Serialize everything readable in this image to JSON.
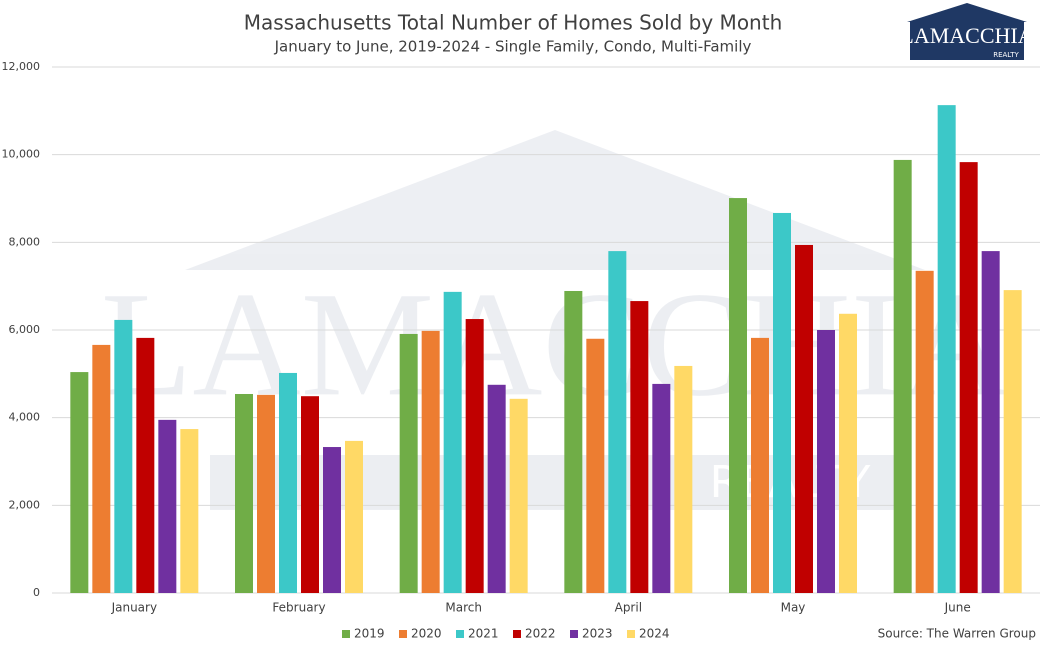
{
  "chart_data": {
    "type": "bar",
    "title": "Massachusetts Total Number of Homes Sold by Month",
    "subtitle": "January to June, 2019-2024 - Single Family, Condo, Multi-Family",
    "categories": [
      "January",
      "February",
      "March",
      "April",
      "May",
      "June"
    ],
    "series": [
      {
        "name": "2019",
        "color": "#70ad47",
        "values": [
          5040,
          4540,
          5910,
          6890,
          9010,
          9880
        ]
      },
      {
        "name": "2020",
        "color": "#ed7d31",
        "values": [
          5660,
          4520,
          5980,
          5800,
          5820,
          7350
        ]
      },
      {
        "name": "2021",
        "color": "#3cc8c8",
        "values": [
          6230,
          5020,
          6870,
          7800,
          8670,
          11130
        ]
      },
      {
        "name": "2022",
        "color": "#c00000",
        "values": [
          5820,
          4490,
          6250,
          6660,
          7940,
          9830
        ]
      },
      {
        "name": "2023",
        "color": "#7030a0",
        "values": [
          3950,
          3330,
          4750,
          4770,
          6000,
          7800
        ]
      },
      {
        "name": "2024",
        "color": "#ffd966",
        "values": [
          3740,
          3470,
          4430,
          5180,
          6370,
          6910
        ]
      }
    ],
    "ylim": [
      0,
      12000
    ],
    "yticks": [
      0,
      {
        "value": 2000,
        "label": "2,000"
      },
      {
        "value": 4000,
        "label": "4,000"
      },
      {
        "value": 6000,
        "label": "6,000"
      },
      {
        "value": 8000,
        "label": "8,000"
      },
      {
        "value": 10000,
        "label": "10,000"
      },
      {
        "value": 12000,
        "label": "12,000"
      }
    ],
    "grid": true,
    "legend": "bottom",
    "source": "Source: The Warren Group"
  },
  "logo": {
    "name": "LAMACCHIA",
    "tagline": "REALTY"
  }
}
